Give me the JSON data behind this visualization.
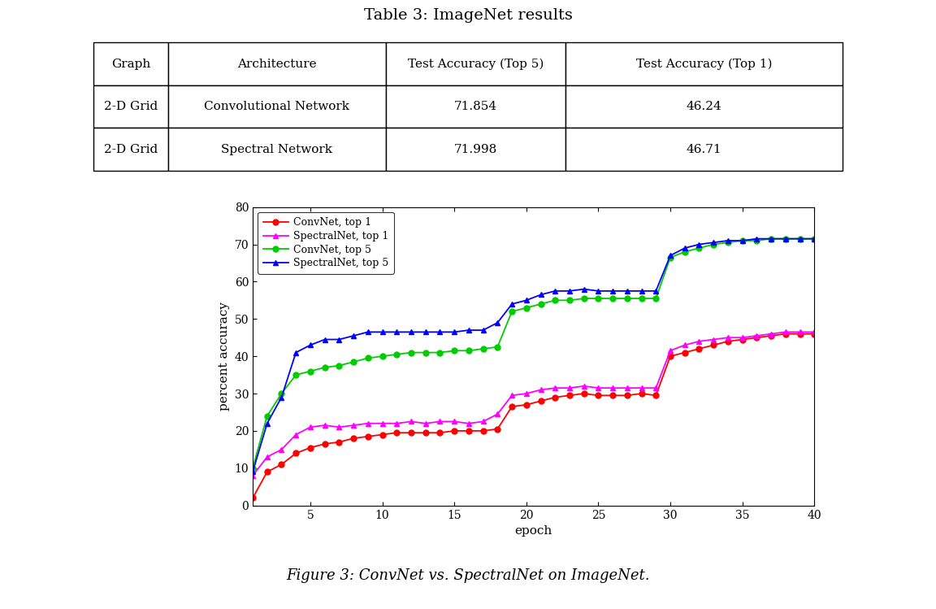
{
  "title_table": "Table 3: ImageNet results",
  "caption": "Figure 3: ConvNet vs. SpectralNet on ImageNet.",
  "table_headers": [
    "Graph",
    "Architecture",
    "Test Accuracy (Top 5)",
    "Test Accuracy (Top 1)"
  ],
  "table_rows": [
    [
      "2-D Grid",
      "Convolutional Network",
      "71.854",
      "46.24"
    ],
    [
      "2-D Grid",
      "Spectral Network",
      "71.998",
      "46.71"
    ]
  ],
  "xlabel": "epoch",
  "ylabel": "percent accuracy",
  "ylim": [
    0,
    80
  ],
  "xlim": [
    1,
    40
  ],
  "xticks": [
    5,
    10,
    15,
    20,
    25,
    30,
    35,
    40
  ],
  "yticks": [
    0,
    10,
    20,
    30,
    40,
    50,
    60,
    70,
    80
  ],
  "background_color": "#ffffff",
  "convnet_top1_color": "#ff0000",
  "spectralnet_top1_color": "#ff00ff",
  "convnet_top5_color": "#00cc00",
  "spectralnet_top5_color": "#0000ff",
  "convnet_top1": [
    2.0,
    9.0,
    11.0,
    14.0,
    15.5,
    16.5,
    17.0,
    18.0,
    18.5,
    19.0,
    19.5,
    19.5,
    19.5,
    19.5,
    20.0,
    20.0,
    20.0,
    20.5,
    26.5,
    27.0,
    28.0,
    29.0,
    29.5,
    30.0,
    29.5,
    29.5,
    29.5,
    30.0,
    29.5,
    40.0,
    41.0,
    42.0,
    43.0,
    44.0,
    44.5,
    45.0,
    45.5,
    46.0,
    46.0,
    46.0
  ],
  "spectralnet_top1": [
    8.0,
    13.0,
    15.0,
    19.0,
    21.0,
    21.5,
    21.0,
    21.5,
    22.0,
    22.0,
    22.0,
    22.5,
    22.0,
    22.5,
    22.5,
    22.0,
    22.5,
    24.5,
    29.5,
    30.0,
    31.0,
    31.5,
    31.5,
    32.0,
    31.5,
    31.5,
    31.5,
    31.5,
    31.5,
    41.5,
    43.0,
    44.0,
    44.5,
    45.0,
    45.0,
    45.5,
    46.0,
    46.5,
    46.5,
    46.5
  ],
  "convnet_top5": [
    10.0,
    24.0,
    30.0,
    35.0,
    36.0,
    37.0,
    37.5,
    38.5,
    39.5,
    40.0,
    40.5,
    41.0,
    41.0,
    41.0,
    41.5,
    41.5,
    42.0,
    42.5,
    52.0,
    53.0,
    54.0,
    55.0,
    55.0,
    55.5,
    55.5,
    55.5,
    55.5,
    55.5,
    55.5,
    66.5,
    68.0,
    69.0,
    70.0,
    70.5,
    71.0,
    71.0,
    71.5,
    71.5,
    71.5,
    71.5
  ],
  "spectralnet_top5": [
    9.0,
    22.0,
    29.0,
    41.0,
    43.0,
    44.5,
    44.5,
    45.5,
    46.5,
    46.5,
    46.5,
    46.5,
    46.5,
    46.5,
    46.5,
    47.0,
    47.0,
    49.0,
    54.0,
    55.0,
    56.5,
    57.5,
    57.5,
    58.0,
    57.5,
    57.5,
    57.5,
    57.5,
    57.5,
    67.0,
    69.0,
    70.0,
    70.5,
    71.0,
    71.0,
    71.5,
    71.5,
    71.5,
    71.5,
    71.5
  ]
}
